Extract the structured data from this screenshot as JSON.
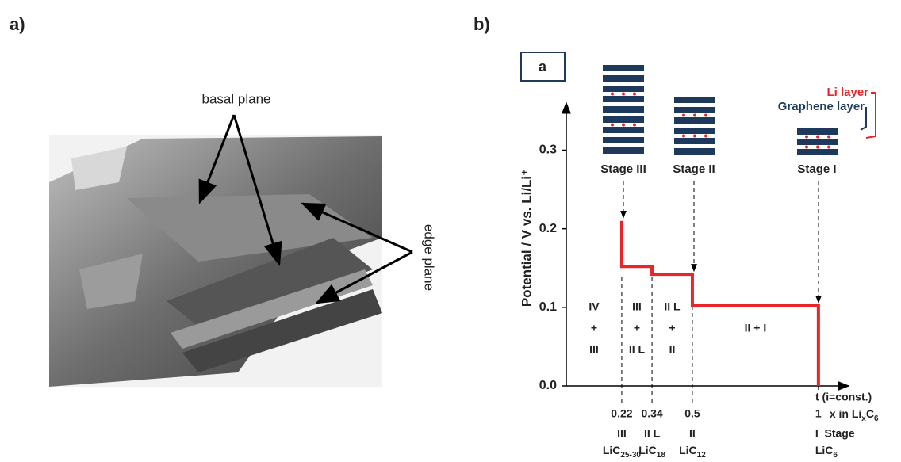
{
  "panels": {
    "left_label": "a)",
    "right_label": "b)"
  },
  "left": {
    "labels": [
      "basal plane",
      "edge plane"
    ]
  },
  "right": {
    "box_label": "a",
    "legend": [
      "Li layer",
      "Graphene layer"
    ],
    "stages": [
      "Stage III",
      "Stage II",
      "Stage I"
    ]
  },
  "chart_data": {
    "type": "line",
    "y_label": "Potential / V vs. Li/Li⁺",
    "x_label": "t (i=const.)",
    "x": [
      0.22,
      0.22,
      0.34,
      0.34,
      0.5,
      0.5,
      1,
      1
    ],
    "series": [
      {
        "color": "#e8262a",
        "values": [
          0.21,
          0.152,
          0.152,
          0.142,
          0.142,
          0.102,
          0.102,
          0
        ]
      }
    ],
    "xlim": [
      0,
      1.12
    ],
    "ylim": [
      0,
      0.36
    ],
    "yticks": [
      {
        "value": 0,
        "label": "0.0"
      },
      0.1,
      0.2,
      0.3
    ],
    "xticks": [
      0.22,
      0.34,
      0.5,
      1
    ],
    "x_unit_label": [
      "x in Li",
      "x",
      "C",
      "6"
    ],
    "tick_stages": [
      "III",
      "II L",
      "II",
      "I  Stage"
    ],
    "tick_compounds": [
      [
        "LiC",
        "25-30"
      ],
      [
        "LiC",
        "18"
      ],
      [
        "LiC",
        "12"
      ],
      [
        "LiC",
        "6"
      ]
    ],
    "regions": [
      [
        "IV",
        "+",
        "III"
      ],
      [
        "III",
        "+",
        "II L"
      ],
      [
        "II L",
        "+",
        "II"
      ],
      [
        "II + I"
      ]
    ]
  }
}
